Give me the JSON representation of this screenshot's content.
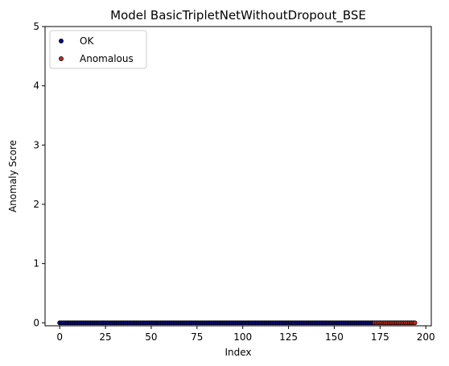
{
  "chart_data": {
    "type": "scatter",
    "title": "Model BasicTripletNetWithoutDropout_BSE",
    "xlabel": "Index",
    "ylabel": "Anomaly Score",
    "xlim": [
      -8,
      203
    ],
    "ylim": [
      -0.05,
      5
    ],
    "x_ticks": [
      0,
      25,
      50,
      75,
      100,
      125,
      150,
      175,
      200
    ],
    "y_ticks": [
      0,
      1,
      2,
      3,
      4,
      5
    ],
    "legend_position": "top-left",
    "grid": false,
    "series": [
      {
        "name": "OK",
        "color": "#0a0a8c",
        "x_start": 0,
        "x_end": 171,
        "y": 0
      },
      {
        "name": "Anomalous",
        "color": "#c0281e",
        "x_start": 172,
        "x_end": 194,
        "y": 0
      }
    ]
  }
}
